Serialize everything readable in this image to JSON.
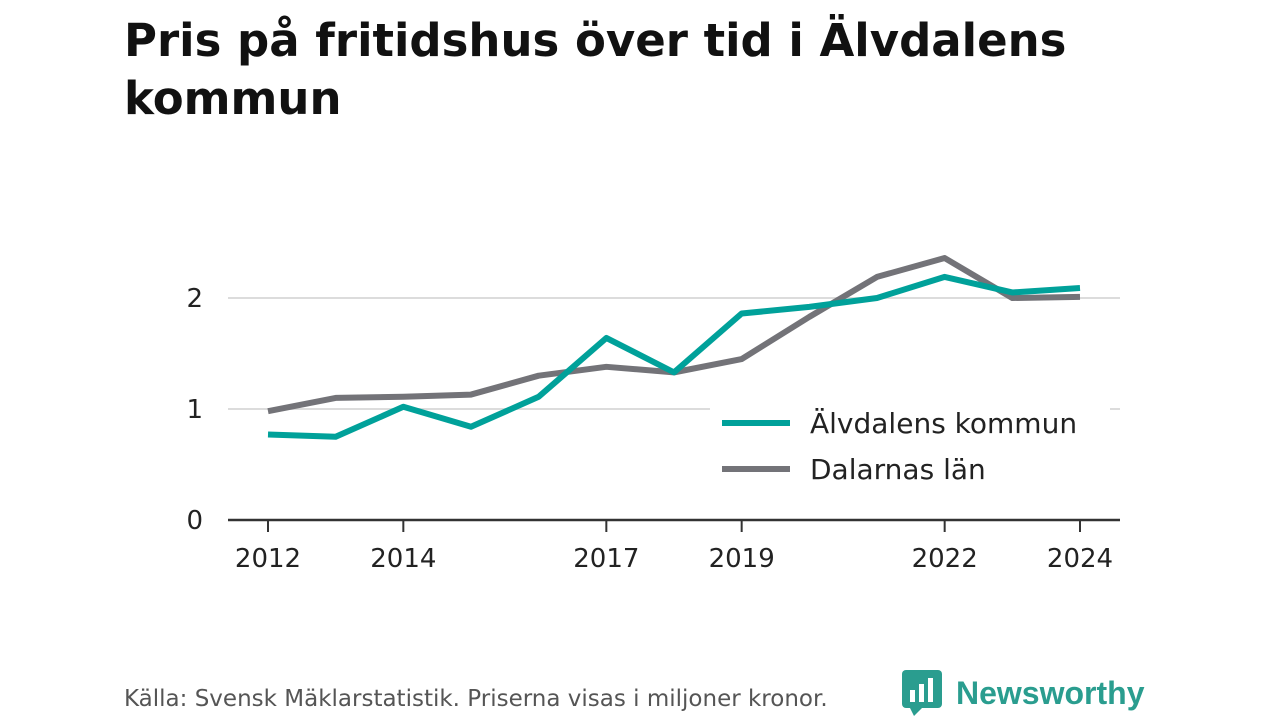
{
  "title": "Pris på fritidshus över tid i Älvdalens kommun",
  "footer": "Källa: Svensk Mäklarstatistik. Priserna visas i miljoner kronor.",
  "brand": {
    "name": "Newsworthy",
    "icon": "newsworthy-logo-icon"
  },
  "colors": {
    "kommun": "#00a19a",
    "lan": "#737378",
    "grid": "#dcdcdc",
    "axis": "#333333"
  },
  "chart_data": {
    "type": "line",
    "title": "Pris på fritidshus över tid i Älvdalens kommun",
    "xlabel": "",
    "ylabel": "",
    "x": [
      2012,
      2013,
      2014,
      2015,
      2016,
      2017,
      2018,
      2019,
      2020,
      2021,
      2022,
      2023,
      2024
    ],
    "xticks": [
      "2012",
      "2014",
      "2017",
      "2019",
      "2022",
      "2024"
    ],
    "yticks": [
      "0",
      "1",
      "2"
    ],
    "ylim": [
      0,
      2.5
    ],
    "grid": true,
    "legend_position": "inside-right",
    "series": [
      {
        "name": "Älvdalens kommun",
        "color": "#00a19a",
        "values": [
          0.77,
          0.75,
          1.02,
          0.84,
          1.11,
          1.64,
          1.33,
          1.86,
          1.92,
          2.0,
          2.19,
          2.05,
          2.09
        ]
      },
      {
        "name": "Dalarnas län",
        "color": "#737378",
        "values": [
          0.98,
          1.1,
          1.11,
          1.13,
          1.3,
          1.38,
          1.33,
          1.45,
          1.83,
          2.19,
          2.36,
          2.0,
          2.01
        ]
      }
    ]
  }
}
